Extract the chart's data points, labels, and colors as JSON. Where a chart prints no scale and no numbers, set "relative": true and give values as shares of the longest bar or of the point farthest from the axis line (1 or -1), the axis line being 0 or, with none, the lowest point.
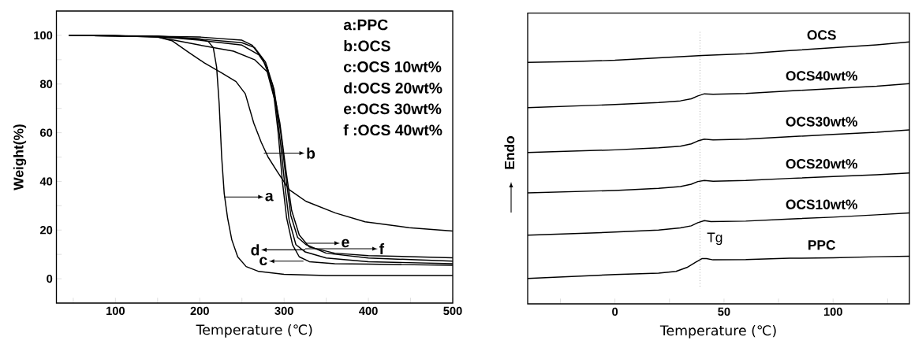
{
  "chart_data": [
    {
      "type": "line",
      "xlabel": "Temperature (℃)",
      "ylabel": "Weight(%)",
      "xlim": [
        30,
        500
      ],
      "ylim": [
        -10,
        110
      ],
      "xticks": [
        {
          "value": 50,
          "label": null
        },
        100,
        {
          "value": 150,
          "label": null
        },
        200,
        {
          "value": 250,
          "label": null
        },
        300,
        {
          "value": 350,
          "label": null
        },
        400,
        {
          "value": 450,
          "label": null
        },
        500
      ],
      "yticks": [
        0,
        {
          "value": 10,
          "label": null
        },
        20,
        {
          "value": 30,
          "label": null
        },
        40,
        {
          "value": 50,
          "label": null
        },
        60,
        {
          "value": 70,
          "label": null
        },
        80,
        {
          "value": 90,
          "label": null
        },
        100
      ],
      "annotations": [
        "a:PPC",
        "b:OCS",
        "c:OCS 10wt%",
        "d:OCS 20wt%",
        "e:OCS 30wt%",
        "f :OCS 40wt%",
        {
          "text": "a",
          "x": 229,
          "y": 33.6
        },
        {
          "text": "b",
          "x": 276,
          "y": 51.6
        },
        {
          "text": "e",
          "x": 326,
          "y": 14.6
        },
        {
          "text": "c",
          "x": 323,
          "y": 7.2
        },
        "f",
        "d"
      ],
      "series": [
        {
          "color": "#000000",
          "x": [
            45,
            100,
            150,
            200,
            210,
            216,
            220,
            223,
            226,
            229,
            233,
            238,
            245,
            255,
            270,
            300,
            350,
            500
          ],
          "values": [
            100,
            99.8,
            99.7,
            98.5,
            97.5,
            95,
            87,
            72,
            50,
            35,
            25,
            16,
            9,
            5,
            3,
            1.8,
            1.3,
            1.3
          ]
        },
        {
          "color": "#000000",
          "x": [
            45,
            100,
            150,
            167,
            187,
            205,
            226,
            243,
            254,
            264,
            273,
            281,
            292,
            306,
            326,
            361,
            396,
            448,
            500
          ],
          "values": [
            100,
            99.8,
            99.3,
            97.8,
            93,
            88.8,
            84.6,
            81,
            76,
            64,
            56,
            50,
            44,
            36.6,
            31.8,
            27,
            23.4,
            21,
            19.6
          ]
        },
        {
          "color": "#000000",
          "x": [
            45,
            100,
            150,
            200,
            250,
            270,
            280,
            288,
            293,
            298,
            303,
            310,
            318,
            330,
            360,
            400,
            500
          ],
          "values": [
            100,
            99.8,
            99.5,
            98,
            96,
            92,
            87,
            75,
            60,
            40,
            25,
            14,
            9,
            7,
            6.2,
            6,
            5.5
          ]
        },
        {
          "color": "#000000",
          "x": [
            45,
            100,
            150,
            200,
            240,
            265,
            280,
            290,
            296,
            301,
            306,
            314,
            325,
            350,
            400,
            500
          ],
          "values": [
            100,
            99.8,
            99.3,
            96,
            93.5,
            90,
            85,
            72,
            55,
            38,
            24,
            14,
            11,
            8.5,
            7,
            6.2
          ]
        },
        {
          "color": "#000000",
          "x": [
            45,
            100,
            150,
            200,
            250,
            265,
            278,
            288,
            296,
            302,
            308,
            316,
            326,
            350,
            400,
            500
          ],
          "values": [
            100,
            99.8,
            99.5,
            98.5,
            97,
            95,
            89,
            78,
            60,
            42,
            26,
            17,
            14,
            10.5,
            8.5,
            7.2
          ]
        },
        {
          "color": "#000000",
          "x": [
            45,
            100,
            150,
            200,
            250,
            262,
            275,
            286,
            295,
            302,
            309,
            318,
            330,
            360,
            400,
            500
          ],
          "values": [
            100,
            99.8,
            99.6,
            99.3,
            98,
            96,
            90,
            80,
            64,
            45,
            28,
            18,
            13,
            10.5,
            9.5,
            8.6
          ]
        }
      ]
    },
    {
      "type": "line",
      "relative": true,
      "xlabel": "Temperature (℃)",
      "ylabel": "Endo",
      "tick_labels": "x",
      "xlim": [
        -40,
        135
      ],
      "xticks": [
        {
          "value": -25,
          "label": null
        },
        0,
        {
          "value": 25,
          "label": null
        },
        50,
        {
          "value": 75,
          "label": null
        },
        100,
        {
          "value": 125,
          "label": null
        }
      ],
      "ref_lines": [
        {
          "axis": "x",
          "value": 39,
          "label": "Tg",
          "color": "#808080",
          "line_style": "dotted"
        }
      ],
      "series": [
        {
          "name": "OCS",
          "color": "#000000",
          "x": [
            -40,
            -20,
            0,
            20,
            40,
            60,
            80,
            100,
            120,
            135
          ],
          "values": [
            0.922,
            0.925,
            0.93,
            0.939,
            0.948,
            0.955,
            0.967,
            0.978,
            0.989,
            1
          ]
        },
        {
          "name": "OCS40wt%",
          "color": "#000000",
          "x": [
            -40,
            0,
            20,
            30,
            35,
            38,
            41,
            45,
            60,
            80,
            100,
            120,
            135
          ],
          "values": [
            0.749,
            0.761,
            0.769,
            0.775,
            0.783,
            0.794,
            0.802,
            0.8,
            0.803,
            0.813,
            0.822,
            0.831,
            0.841
          ]
        },
        {
          "name": "OCS30wt%",
          "color": "#000000",
          "x": [
            -40,
            0,
            20,
            30,
            35,
            38,
            41,
            45,
            60,
            80,
            100,
            120,
            135
          ],
          "values": [
            0.578,
            0.588,
            0.596,
            0.602,
            0.611,
            0.622,
            0.629,
            0.626,
            0.629,
            0.638,
            0.647,
            0.655,
            0.664
          ]
        },
        {
          "name": "OCS20wt%",
          "color": "#000000",
          "x": [
            -40,
            0,
            20,
            30,
            35,
            38,
            41,
            45,
            60,
            80,
            100,
            120,
            135
          ],
          "values": [
            0.424,
            0.433,
            0.441,
            0.448,
            0.457,
            0.467,
            0.471,
            0.468,
            0.471,
            0.479,
            0.486,
            0.493,
            0.5
          ]
        },
        {
          "name": "OCS10wt%",
          "color": "#000000",
          "x": [
            -40,
            0,
            20,
            30,
            35,
            38,
            41,
            44,
            60,
            80,
            100,
            120,
            135
          ],
          "values": [
            0.262,
            0.274,
            0.282,
            0.29,
            0.298,
            0.31,
            0.318,
            0.314,
            0.316,
            0.324,
            0.331,
            0.34,
            0.347
          ]
        },
        {
          "name": "PPC",
          "color": "#000000",
          "x": [
            -40,
            0,
            20,
            28,
            33,
            37,
            40,
            42,
            45,
            60,
            80,
            100,
            120,
            135
          ],
          "values": [
            0.097,
            0.112,
            0.117,
            0.124,
            0.139,
            0.159,
            0.173,
            0.173,
            0.168,
            0.169,
            0.174,
            0.176,
            0.18,
            0.182
          ]
        }
      ]
    }
  ]
}
